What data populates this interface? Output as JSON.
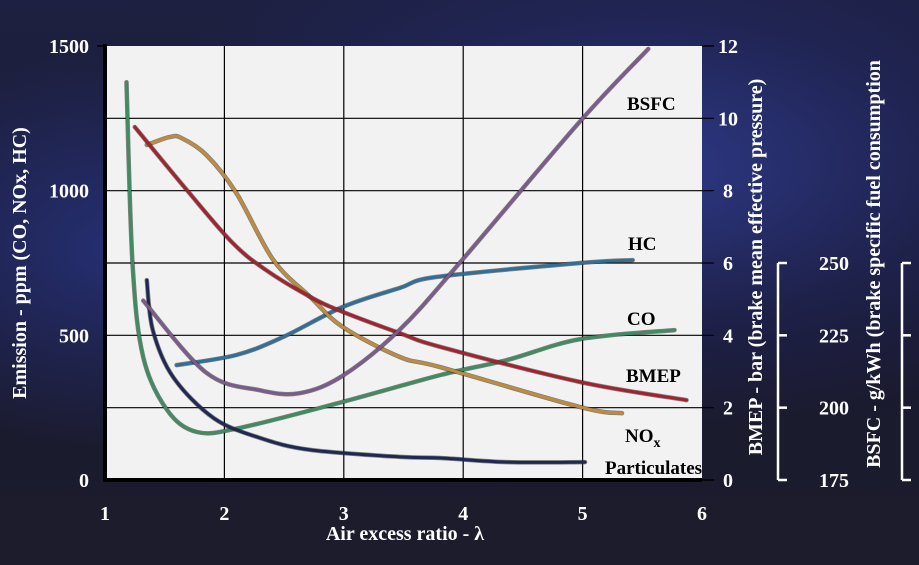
{
  "chart_data": {
    "type": "line",
    "xlabel": "Air excess ratio  -  λ",
    "ylabel": "Emission  -  ppm (CO, NOx, HC)",
    "y2label": "BMEP  -  bar  (brake mean effective pressure)",
    "y3label": "BSFC  -  g/kWh  (brake specific fuel consumption",
    "xlim": [
      1,
      6
    ],
    "ylim": [
      0,
      1500
    ],
    "y2lim": [
      0,
      12
    ],
    "y3lim": [
      175,
      250
    ],
    "xticks": [
      "1",
      "2",
      "3",
      "4",
      "5",
      "6"
    ],
    "yticks": [
      "0",
      "500",
      "1000",
      "1500"
    ],
    "y2ticks": [
      "0",
      "2",
      "4",
      "6",
      "8",
      "10",
      "12"
    ],
    "y3ticks": [
      "175",
      "200",
      "225",
      "250"
    ],
    "grid": true,
    "series": [
      {
        "name": "CO",
        "axis": "ppm",
        "color": "#3f8c62",
        "x": [
          1.18,
          1.23,
          1.32,
          1.52,
          1.77,
          2.13,
          2.99,
          3.81,
          4.37,
          4.98,
          5.77
        ],
        "y": [
          1375,
          750,
          425,
          242,
          166,
          180,
          270,
          363,
          415,
          487,
          518
        ]
      },
      {
        "name": "HC",
        "axis": "ppm",
        "color": "#2f6f98",
        "x": [
          1.6,
          2.1,
          2.49,
          2.99,
          3.47,
          3.78,
          4.98,
          5.42
        ],
        "y": [
          397,
          432,
          494,
          598,
          664,
          702,
          750,
          760
        ]
      },
      {
        "name": "Particulates",
        "axis": "ppm",
        "color": "#1e2852",
        "x": [
          1.35,
          1.4,
          1.57,
          1.91,
          2.3,
          2.72,
          3.47,
          3.81,
          4.37,
          5.02
        ],
        "y": [
          691,
          518,
          356,
          214,
          145,
          104,
          80,
          76,
          62,
          62
        ]
      },
      {
        "name": "NOx",
        "axis": "ppm",
        "color": "#c18b3c",
        "x": [
          1.35,
          1.54,
          1.64,
          1.85,
          2.1,
          2.41,
          2.72,
          2.99,
          3.47,
          3.81,
          4.98,
          5.33
        ],
        "y": [
          1158,
          1185,
          1182,
          1123,
          992,
          760,
          632,
          529,
          425,
          390,
          252,
          231
        ]
      },
      {
        "name": "BMEP",
        "axis": "bar",
        "color": "#a3222f",
        "x": [
          1.25,
          1.69,
          2.07,
          2.35,
          2.72,
          2.99,
          3.47,
          3.81,
          4.98,
          5.87
        ],
        "y": [
          9.76,
          8.0,
          6.55,
          5.8,
          5.06,
          4.65,
          4.06,
          3.68,
          2.71,
          2.21
        ]
      },
      {
        "name": "BSFC",
        "axis": "g/kWh",
        "color": "#7b5b8c",
        "x": [
          1.32,
          1.85,
          2.3,
          2.63,
          2.99,
          3.47,
          3.97,
          4.98,
          5.55
        ],
        "y": [
          237,
          212,
          206,
          205,
          211,
          227,
          250,
          299,
          324
        ]
      }
    ],
    "annotations": {
      "bsfc": "BSFC",
      "hc": "HC",
      "co": "CO",
      "bmep": "BMEP",
      "nox_main": "NO",
      "nox_sub": "x",
      "particulates": "Particulates"
    }
  }
}
